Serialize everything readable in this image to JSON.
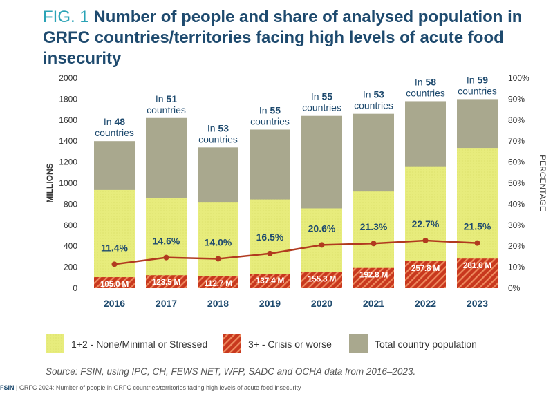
{
  "title": {
    "fig": "FIG. 1",
    "text": "Number of people and share of analysed population in GRFC countries/territories facing high levels of acute food insecurity"
  },
  "source": "Source: FSIN, using IPC, CH, FEWS NET, WFP, SADC and OCHA data from 2016–2023.",
  "footer": {
    "brand": "FSIN",
    "text": " | GRFC 2024: Number of people in GRFC countries/territories facing high levels of acute food insecurity"
  },
  "colors": {
    "total": "#a9a88e",
    "stressed": "#e7ec7c",
    "crisis": "#c8381e",
    "line": "#b13a1f",
    "axis_text": "#333333",
    "label_blue": "#1e4a6e"
  },
  "chart_data": {
    "type": "bar",
    "categories": [
      "2016",
      "2017",
      "2018",
      "2019",
      "2020",
      "2021",
      "2022",
      "2023"
    ],
    "series": [
      {
        "name": "Total country population",
        "values": [
          1400,
          1620,
          1340,
          1510,
          1640,
          1660,
          1780,
          1800
        ]
      },
      {
        "name": "1+2 - None/Minimal or Stressed",
        "values": [
          935,
          860,
          815,
          845,
          760,
          920,
          1160,
          1335
        ]
      },
      {
        "name": "3+ - Crisis or worse",
        "values": [
          105.0,
          123.5,
          112.7,
          137.4,
          155.3,
          192.8,
          257.8,
          281.6
        ]
      }
    ],
    "crisis_labels": [
      "105.0 M",
      "123.5 M",
      "112.7 M",
      "137.4 M",
      "155.3 M",
      "192.8 M",
      "257.8 M",
      "281.6 M"
    ],
    "share_percent": [
      11.4,
      14.6,
      14.0,
      16.5,
      20.6,
      21.3,
      22.7,
      21.5
    ],
    "share_labels": [
      "11.4%",
      "14.6%",
      "14.0%",
      "16.5%",
      "20.6%",
      "21.3%",
      "22.7%",
      "21.5%"
    ],
    "country_counts": [
      "48",
      "51",
      "53",
      "55",
      "55",
      "53",
      "58",
      "59"
    ],
    "country_prefix": "In",
    "country_suffix": "countries",
    "ylabel": "MILLIONS",
    "ylabel_right": "PERCENTAGE",
    "ylim": [
      0,
      2000
    ],
    "yticks": [
      "0",
      "200",
      "400",
      "600",
      "800",
      "1000",
      "1200",
      "1400",
      "1600",
      "1800",
      "2000"
    ],
    "ylim_right": [
      0,
      100
    ],
    "yticks_right": [
      "0%",
      "10%",
      "20%",
      "30%",
      "40%",
      "50%",
      "60%",
      "70%",
      "80%",
      "90%",
      "100%"
    ],
    "legend": [
      "1+2 - None/Minimal or Stressed",
      "3+ - Crisis or worse",
      "Total country population"
    ],
    "legend_position": "bottom",
    "grid": false
  }
}
